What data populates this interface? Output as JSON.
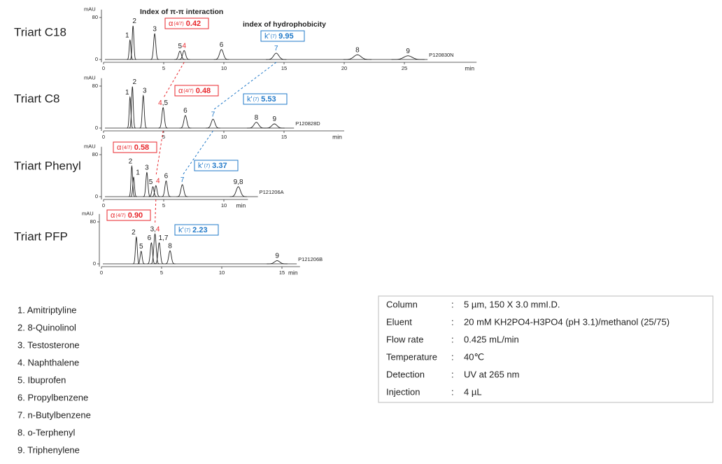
{
  "chart_data": [
    {
      "type": "chromatogram",
      "title": "Triart C18",
      "sample": "P120830N",
      "ylabel": "mAU",
      "xlabel": "min",
      "xlim": [
        0,
        31
      ],
      "xticks": [
        0,
        5,
        10,
        15,
        20,
        25
      ],
      "ylim": [
        0,
        95
      ],
      "yticks": [
        0,
        80
      ],
      "annotations": [
        "Index of π-π interaction",
        "index of hydrophobicity"
      ],
      "alpha": {
        "symbol": "α",
        "subscript": "(4/7)",
        "value": "0.42"
      },
      "k": {
        "symbol": "k'",
        "subscript": "(7)",
        "value": "9.95"
      },
      "highlight_colors": {
        "4": "#e8262b",
        "7": "#1f78c8"
      },
      "peaks": [
        {
          "label": [
            "1"
          ],
          "time": 2.2,
          "height": 37
        },
        {
          "label": [
            "2"
          ],
          "time": 2.45,
          "height": 64
        },
        {
          "label": [
            "3"
          ],
          "time": 4.25,
          "height": 49
        },
        {
          "label": [
            "5"
          ],
          "time": 6.35,
          "height": 16
        },
        {
          "label": [
            "4"
          ],
          "time": 6.7,
          "height": 17
        },
        {
          "label": [
            "6"
          ],
          "time": 9.8,
          "height": 19
        },
        {
          "label": [
            "7"
          ],
          "time": 14.35,
          "height": 12
        },
        {
          "label": [
            "8"
          ],
          "time": 21.1,
          "height": 9
        },
        {
          "label": [
            "9"
          ],
          "time": 25.3,
          "height": 7
        }
      ]
    },
    {
      "type": "chromatogram",
      "title": "Triart C8",
      "sample": "P120828D",
      "ylabel": "mAU",
      "xlabel": "min",
      "xlim": [
        0,
        20
      ],
      "xticks": [
        0,
        5,
        10,
        15
      ],
      "ylim": [
        0,
        95
      ],
      "yticks": [
        0,
        80
      ],
      "alpha": {
        "symbol": "α",
        "subscript": "(4/7)",
        "value": "0.48"
      },
      "k": {
        "symbol": "k'",
        "subscript": "(7)",
        "value": "5.53"
      },
      "highlight_colors": {
        "4": "#e8262b",
        "7": "#1f78c8"
      },
      "peaks": [
        {
          "label": [
            "1"
          ],
          "time": 2.2,
          "height": 59
        },
        {
          "label": [
            "2"
          ],
          "time": 2.4,
          "height": 79
        },
        {
          "label": [
            "3"
          ],
          "time": 3.3,
          "height": 62
        },
        {
          "label": [
            "4",
            ",5"
          ],
          "time": 4.95,
          "height": 39
        },
        {
          "label": [
            "6"
          ],
          "time": 6.8,
          "height": 24
        },
        {
          "label": [
            "7"
          ],
          "time": 9.1,
          "height": 17
        },
        {
          "label": [
            "8"
          ],
          "time": 12.7,
          "height": 11
        },
        {
          "label": [
            "9"
          ],
          "time": 14.2,
          "height": 8
        }
      ]
    },
    {
      "type": "chromatogram",
      "title": "Triart Phenyl",
      "sample": "P121206A",
      "ylabel": "mAU",
      "xlabel": "min",
      "xlim": [
        0,
        12
      ],
      "xticks": [
        0,
        5,
        10
      ],
      "ylim": [
        0,
        95
      ],
      "yticks": [
        0,
        80
      ],
      "alpha": {
        "symbol": "α",
        "subscript": "(4/7)",
        "value": "0.58"
      },
      "k": {
        "symbol": "k'",
        "subscript": "(7)",
        "value": "3.37"
      },
      "highlight_colors": {
        "4": "#e8262b",
        "7": "#1f78c8"
      },
      "peaks": [
        {
          "label": [
            "2"
          ],
          "time": 2.35,
          "height": 58
        },
        {
          "label": [
            "1"
          ],
          "time": 2.5,
          "height": 37
        },
        {
          "label": [
            "3"
          ],
          "time": 3.6,
          "height": 46
        },
        {
          "label": [
            "5"
          ],
          "time": 4.1,
          "height": 19
        },
        {
          "label": [
            "4"
          ],
          "time": 4.35,
          "height": 21
        },
        {
          "label": [
            "6"
          ],
          "time": 5.2,
          "height": 30
        },
        {
          "label": [
            "7"
          ],
          "time": 6.55,
          "height": 23
        },
        {
          "label": [
            "9,8"
          ],
          "time": 11.2,
          "height": 19
        }
      ]
    },
    {
      "type": "chromatogram",
      "title": "Triart PFP",
      "sample": "P121206B",
      "ylabel": "mAU",
      "xlabel": "min",
      "xlim": [
        0,
        16.5
      ],
      "xticks": [
        0,
        5,
        10,
        15
      ],
      "ylim": [
        0,
        95
      ],
      "yticks": [
        0,
        80
      ],
      "alpha": {
        "symbol": "α",
        "subscript": "(4/7)",
        "value": "0.90"
      },
      "k": {
        "symbol": "k'",
        "subscript": "(7)",
        "value": "2.23"
      },
      "highlight_colors": {
        "4": "#e8262b",
        "7": "#1f78c8"
      },
      "peaks": [
        {
          "label": [
            "2"
          ],
          "time": 2.9,
          "height": 51
        },
        {
          "label": [
            "5"
          ],
          "time": 3.3,
          "height": 24
        },
        {
          "label": [
            "6"
          ],
          "time": 4.15,
          "height": 40
        },
        {
          "label": [
            "3,",
            "4"
          ],
          "time": 4.45,
          "height": 57
        },
        {
          "label": [
            "1,7"
          ],
          "time": 4.8,
          "height": 40
        },
        {
          "label": [
            "8"
          ],
          "time": 5.7,
          "height": 25
        },
        {
          "label": [
            "9"
          ],
          "time": 14.6,
          "height": 6
        }
      ]
    }
  ],
  "compounds": [
    "1. Amitriptyline",
    "2. 8-Quinolinol",
    "3. Testosterone",
    "4. Naphthalene",
    "5. Ibuprofen",
    "6. Propylbenzene",
    "7. n-Butylbenzene",
    "8. o-Terphenyl",
    "9. Triphenylene"
  ],
  "conditions": {
    "separator": ":",
    "rows": [
      [
        "Column",
        "5 µm, 150 X 3.0 mmI.D."
      ],
      [
        "Eluent",
        "20 mM KH2PO4-H3PO4 (pH 3.1)/methanol (25/75)"
      ],
      [
        "Flow rate",
        "0.425 mL/min"
      ],
      [
        "Temperature",
        "40℃"
      ],
      [
        "Detection",
        "UV at 265 nm"
      ],
      [
        "Injection",
        "4 µL"
      ]
    ]
  }
}
